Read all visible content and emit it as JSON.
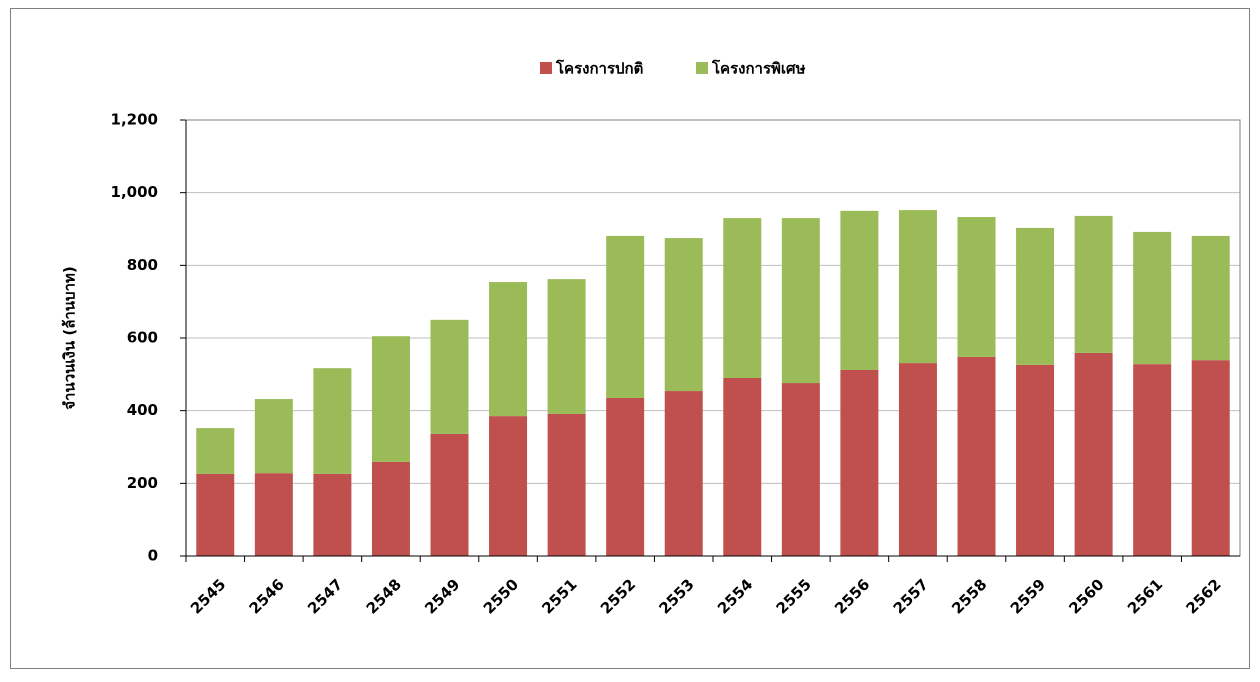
{
  "chart_data": {
    "type": "stacked_bar",
    "y_label": "จำนวนเงิน (ล้านบาท)",
    "categories": [
      "2545",
      "2546",
      "2547",
      "2548",
      "2549",
      "2550",
      "2551",
      "2552",
      "2553",
      "2554",
      "2555",
      "2556",
      "2557",
      "2558",
      "2559",
      "2560",
      "2561",
      "2562"
    ],
    "series": [
      {
        "name": "โครงการปกติ",
        "color": "#c0504d",
        "values": [
          226,
          228,
          226,
          259,
          336,
          385,
          391,
          435,
          454,
          490,
          476,
          512,
          531,
          548,
          526,
          559,
          528,
          539
        ]
      },
      {
        "name": "โครงการพิเศษ",
        "color": "#9bbb59",
        "values": [
          126,
          204,
          291,
          346,
          314,
          369,
          371,
          446,
          421,
          440,
          454,
          438,
          421,
          385,
          377,
          377,
          364,
          342
        ]
      }
    ],
    "ylim": [
      0,
      1200
    ],
    "yticks": [
      0,
      200,
      400,
      600,
      800,
      {
        "value": 1000,
        "label": "1,000"
      },
      {
        "value": 1200,
        "label": "1,200"
      }
    ],
    "grid": true,
    "legend": "top"
  }
}
